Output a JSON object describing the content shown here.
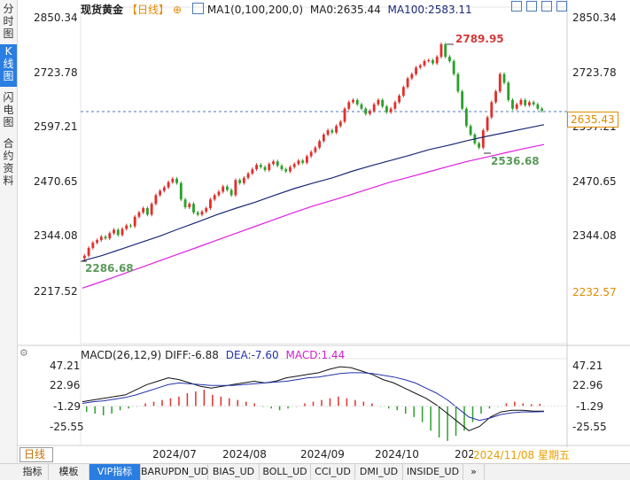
{
  "sidebar": {
    "tabs": [
      {
        "label": "分时图"
      },
      {
        "label": "K线图",
        "active": true
      },
      {
        "label": "闪电图"
      },
      {
        "label": "合约资料"
      }
    ]
  },
  "header": {
    "instrument": "现货黄金",
    "period": "【日线】",
    "ma_label": "MA1(0,100,200,0)",
    "ma0_label": "MA0:2635.44",
    "ma100_label": "MA100:2583.11"
  },
  "price_labels": {
    "y_ticks": [
      "2850.34",
      "2723.78",
      "2597.21",
      "2470.65",
      "2344.08",
      "2217.52"
    ],
    "right_ticks": [
      "2850.34",
      "2723.78",
      "2597.21",
      "2470.65",
      "2344.08"
    ],
    "current": "2635.43",
    "ma200_current": "2232.57",
    "high_annotation": "2789.95",
    "low1_annotation": "2286.68",
    "low2_annotation": "2536.68"
  },
  "macd": {
    "title": "MACD(26,12,9)",
    "diff": "DIFF:-6.88",
    "dea": "DEA:-7.60",
    "macd": "MACD:1.44",
    "y_ticks": [
      "47.21",
      "22.96",
      "-1.29",
      "-25.55"
    ]
  },
  "x_labels": [
    "2024/07",
    "2024/08",
    "2024/09",
    "2024/10",
    "202"
  ],
  "date_badge": "2024/11/08 星期五",
  "period_selector": "日线",
  "bottom_tabs": [
    "指标",
    "模板",
    "VIP指标",
    "BARUPDN_UD",
    "BIAS_UD",
    "BOLL_UD",
    "CCI_UD",
    "DMI_UD",
    "INSIDE_UD"
  ],
  "colors": {
    "up": "#e0302c",
    "down": "#2ca02c",
    "ma100": "#1a2a78",
    "ma200": "#e020e0",
    "dea": "#2233aa",
    "current_line": "#4a7ab8",
    "orange": "#e08a00"
  },
  "chart_data": {
    "type": "candlestick",
    "ylim": [
      2217.52,
      2850.34
    ],
    "candles_close": [
      2300,
      2318,
      2330,
      2336,
      2344,
      2340,
      2352,
      2360,
      2348,
      2362,
      2370,
      2368,
      2390,
      2400,
      2410,
      2395,
      2420,
      2440,
      2450,
      2458,
      2470,
      2478,
      2468,
      2430,
      2412,
      2420,
      2400,
      2395,
      2402,
      2410,
      2430,
      2440,
      2448,
      2460,
      2452,
      2440,
      2475,
      2468,
      2480,
      2490,
      2500,
      2510,
      2505,
      2498,
      2512,
      2518,
      2508,
      2500,
      2495,
      2505,
      2512,
      2520,
      2515,
      2530,
      2540,
      2550,
      2565,
      2580,
      2590,
      2585,
      2600,
      2610,
      2640,
      2655,
      2660,
      2650,
      2640,
      2628,
      2635,
      2650,
      2660,
      2645,
      2632,
      2640,
      2655,
      2670,
      2690,
      2710,
      2720,
      2735,
      2740,
      2750,
      2752,
      2745,
      2760,
      2789,
      2760,
      2750,
      2720,
      2680,
      2640,
      2600,
      2580,
      2560,
      2550,
      2590,
      2620,
      2655,
      2680,
      2720,
      2700,
      2660,
      2640,
      2650,
      2660,
      2648,
      2655,
      2650,
      2640,
      2635
    ],
    "ma100": [
      2288,
      2300,
      2315,
      2330,
      2345,
      2362,
      2378,
      2395,
      2410,
      2424,
      2440,
      2455,
      2468,
      2480,
      2495,
      2508,
      2520,
      2532,
      2545,
      2555,
      2566,
      2576,
      2585,
      2594,
      2603
    ],
    "ma200": [
      2225,
      2240,
      2256,
      2272,
      2288,
      2304,
      2320,
      2336,
      2352,
      2368,
      2384,
      2400,
      2415,
      2428,
      2442,
      2456,
      2470,
      2482,
      2494,
      2506,
      2518,
      2528,
      2538,
      2548,
      2557
    ],
    "macd_diff": [
      4,
      6,
      8,
      10,
      12,
      18,
      24,
      28,
      32,
      30,
      26,
      22,
      20,
      22,
      24,
      26,
      28,
      26,
      28,
      32,
      34,
      36,
      38,
      42,
      45,
      44,
      40,
      36,
      30,
      26,
      20,
      14,
      8,
      0,
      -10,
      -20,
      -30,
      -25,
      -14,
      -8,
      -6,
      -6,
      -7,
      -7
    ],
    "macd_dea": [
      2,
      4,
      5,
      7,
      9,
      12,
      16,
      20,
      24,
      26,
      25,
      24,
      23,
      23,
      23,
      24,
      25,
      26,
      27,
      28,
      30,
      32,
      33,
      35,
      37,
      38,
      38,
      37,
      35,
      33,
      30,
      26,
      20,
      14,
      6,
      -4,
      -14,
      -18,
      -15,
      -11,
      -9,
      -8,
      -8,
      -7.6
    ],
    "macd_hist": [
      -8,
      -10,
      -12,
      -10,
      -6,
      -4,
      -2,
      2,
      4,
      6,
      8,
      10,
      14,
      16,
      18,
      12,
      10,
      8,
      6,
      4,
      2,
      -2,
      -4,
      -6,
      -4,
      -2,
      2,
      4,
      6,
      8,
      10,
      8,
      6,
      4,
      2,
      -2,
      -4,
      -6,
      -10,
      -14,
      -20,
      -30,
      -38,
      -42,
      -36,
      -30,
      -20,
      -10,
      -4,
      -2,
      2,
      4,
      2,
      1,
      1.4
    ]
  }
}
